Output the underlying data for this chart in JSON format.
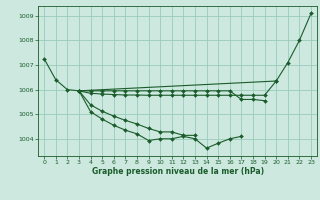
{
  "background_color": "#cce8df",
  "grid_color": "#99ccbb",
  "line_color": "#1a5c2a",
  "xlabel": "Graphe pression niveau de la mer (hPa)",
  "xlim": [
    -0.5,
    23.5
  ],
  "ylim": [
    1003.3,
    1009.4
  ],
  "yticks": [
    1004,
    1005,
    1006,
    1007,
    1008,
    1009
  ],
  "xticks": [
    0,
    1,
    2,
    3,
    4,
    5,
    6,
    7,
    8,
    9,
    10,
    11,
    12,
    13,
    14,
    15,
    16,
    17,
    18,
    19,
    20,
    21,
    22,
    23
  ],
  "curves": [
    {
      "x": [
        0,
        1,
        2,
        3,
        20,
        21,
        22,
        23
      ],
      "y": [
        1007.25,
        1006.4,
        1006.0,
        1005.95,
        1006.35,
        1007.1,
        1008.0,
        1009.1
      ]
    },
    {
      "x": [
        3,
        4,
        5,
        6,
        7,
        8,
        9,
        10,
        11,
        12,
        13,
        14,
        15,
        16,
        17
      ],
      "y": [
        1005.95,
        1005.1,
        1004.8,
        1004.55,
        1004.35,
        1004.2,
        1003.93,
        1004.0,
        1004.0,
        1004.1,
        1004.0,
        1003.62,
        1003.82,
        1004.0,
        1004.1
      ]
    },
    {
      "x": [
        3,
        4,
        5,
        6,
        7,
        8,
        9,
        10,
        11,
        12,
        13
      ],
      "y": [
        1005.95,
        1005.38,
        1005.12,
        1004.92,
        1004.75,
        1004.6,
        1004.42,
        1004.28,
        1004.28,
        1004.14,
        1004.14
      ]
    },
    {
      "x": [
        3,
        4,
        5,
        6,
        7,
        8,
        9,
        10,
        11,
        12,
        13,
        14,
        15,
        16,
        17,
        18,
        19,
        20
      ],
      "y": [
        1005.95,
        1005.85,
        1005.82,
        1005.8,
        1005.78,
        1005.78,
        1005.77,
        1005.77,
        1005.77,
        1005.77,
        1005.77,
        1005.77,
        1005.77,
        1005.77,
        1005.77,
        1005.77,
        1005.77,
        1006.35
      ]
    },
    {
      "x": [
        3,
        4,
        5,
        6,
        7,
        8,
        9,
        10,
        11,
        12,
        13,
        14,
        15,
        16,
        17,
        18,
        19
      ],
      "y": [
        1005.95,
        1005.95,
        1005.95,
        1005.95,
        1005.95,
        1005.95,
        1005.95,
        1005.95,
        1005.95,
        1005.95,
        1005.95,
        1005.95,
        1005.95,
        1005.95,
        1005.6,
        1005.6,
        1005.55
      ]
    }
  ]
}
